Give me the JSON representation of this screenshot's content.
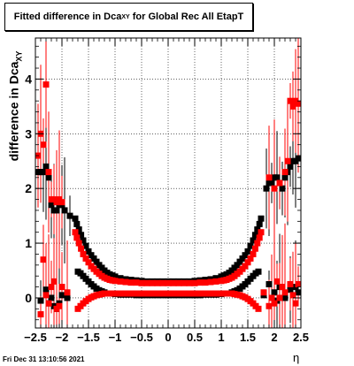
{
  "title": {
    "main": "Fitted difference in Dca",
    "sub": "XY",
    "rest": " for Global Rec All EtapT"
  },
  "ylabel": {
    "main": "difference in Dca",
    "sub": "XY"
  },
  "xlabel": "η",
  "timestamp": "Fri Dec 31 13:10:56 2021",
  "colors": {
    "black": "#000000",
    "red": "#ff0000"
  },
  "chart_data": {
    "type": "scatter",
    "xlim": [
      -2.5,
      2.5
    ],
    "ylim": [
      -0.55,
      4.75
    ],
    "grid": true,
    "x_ticks": [
      -2.5,
      -2,
      -1.5,
      -1,
      -0.5,
      0,
      0.5,
      1,
      1.5,
      2,
      2.5
    ],
    "x_tick_labels": [
      "−2.5",
      "−2",
      "−1.5",
      "−1",
      "−0.5",
      "0",
      "0.5",
      "1",
      "1.5",
      "2",
      "2.5"
    ],
    "y_ticks": [
      0,
      1,
      2,
      3,
      4
    ],
    "y_tick_labels": [
      "0",
      "1",
      "2",
      "3",
      "4"
    ],
    "series": [
      {
        "color": "#000000",
        "marker": "square",
        "points": [
          [
            -2.45,
            2.3
          ],
          [
            -2.4,
            2.3
          ],
          [
            -2.35,
            2.3
          ],
          [
            -2.3,
            2.4
          ],
          [
            -2.25,
            2.2
          ],
          [
            -2.2,
            1.7
          ],
          [
            -2.15,
            1.6
          ],
          [
            -2.1,
            1.6
          ],
          [
            -2.05,
            1.7
          ],
          [
            -2.0,
            1.7
          ],
          [
            -1.95,
            1.6
          ],
          [
            -1.85,
            1.5
          ],
          [
            -1.75,
            1.45
          ],
          [
            -1.72,
            1.35
          ],
          [
            -1.68,
            1.25
          ],
          [
            -1.64,
            1.15
          ],
          [
            -1.6,
            1.05
          ],
          [
            -1.55,
            0.95
          ],
          [
            -1.5,
            0.85
          ],
          [
            -1.45,
            0.78
          ],
          [
            -1.4,
            0.72
          ],
          [
            -1.35,
            0.66
          ],
          [
            -1.3,
            0.6
          ],
          [
            -1.25,
            0.55
          ],
          [
            -1.2,
            0.5
          ],
          [
            -1.15,
            0.46
          ],
          [
            -1.1,
            0.43
          ],
          [
            -1.05,
            0.41
          ],
          [
            -1.0,
            0.39
          ],
          [
            -0.9,
            0.36
          ],
          [
            -0.8,
            0.34
          ],
          [
            -0.7,
            0.33
          ],
          [
            -0.6,
            0.32
          ],
          [
            -0.5,
            0.31
          ],
          [
            -0.4,
            0.3
          ],
          [
            -0.3,
            0.3
          ],
          [
            -0.2,
            0.3
          ],
          [
            -0.1,
            0.3
          ],
          [
            0.0,
            0.3
          ],
          [
            0.1,
            0.3
          ],
          [
            0.2,
            0.3
          ],
          [
            0.3,
            0.3
          ],
          [
            0.4,
            0.3
          ],
          [
            0.5,
            0.31
          ],
          [
            0.6,
            0.32
          ],
          [
            0.7,
            0.33
          ],
          [
            0.8,
            0.34
          ],
          [
            0.9,
            0.36
          ],
          [
            1.0,
            0.39
          ],
          [
            1.05,
            0.41
          ],
          [
            1.1,
            0.43
          ],
          [
            1.15,
            0.46
          ],
          [
            1.2,
            0.5
          ],
          [
            1.25,
            0.55
          ],
          [
            1.3,
            0.6
          ],
          [
            1.35,
            0.66
          ],
          [
            1.4,
            0.72
          ],
          [
            1.45,
            0.78
          ],
          [
            1.5,
            0.85
          ],
          [
            1.55,
            0.95
          ],
          [
            1.6,
            1.05
          ],
          [
            1.64,
            1.15
          ],
          [
            1.68,
            1.25
          ],
          [
            1.72,
            1.35
          ],
          [
            1.75,
            1.45
          ],
          [
            1.85,
            2.0
          ],
          [
            1.9,
            2.1
          ],
          [
            1.95,
            2.1
          ],
          [
            2.0,
            2.2
          ],
          [
            2.05,
            2.2
          ],
          [
            2.1,
            2.1
          ],
          [
            2.15,
            2.0
          ],
          [
            2.2,
            2.2
          ],
          [
            2.25,
            2.3
          ],
          [
            2.3,
            2.4
          ],
          [
            2.35,
            2.5
          ],
          [
            2.4,
            2.5
          ],
          [
            2.45,
            2.55
          ],
          [
            -1.7,
            0.48
          ],
          [
            -1.65,
            0.45
          ],
          [
            -1.6,
            0.4
          ],
          [
            -1.55,
            0.35
          ],
          [
            -1.5,
            0.3
          ],
          [
            -1.45,
            0.25
          ],
          [
            -1.4,
            0.21
          ],
          [
            -1.35,
            0.17
          ],
          [
            -1.3,
            0.14
          ],
          [
            -1.25,
            0.12
          ],
          [
            -1.2,
            0.1
          ],
          [
            -1.1,
            0.08
          ],
          [
            -1.0,
            0.07
          ],
          [
            -0.9,
            0.06
          ],
          [
            -0.8,
            0.06
          ],
          [
            -0.7,
            0.06
          ],
          [
            -0.6,
            0.05
          ],
          [
            -0.5,
            0.05
          ],
          [
            -0.4,
            0.05
          ],
          [
            -0.3,
            0.05
          ],
          [
            -0.2,
            0.05
          ],
          [
            -0.1,
            0.05
          ],
          [
            0.0,
            0.05
          ],
          [
            0.1,
            0.05
          ],
          [
            0.2,
            0.05
          ],
          [
            0.3,
            0.05
          ],
          [
            0.4,
            0.05
          ],
          [
            0.5,
            0.05
          ],
          [
            0.6,
            0.05
          ],
          [
            0.7,
            0.06
          ],
          [
            0.8,
            0.06
          ],
          [
            0.9,
            0.06
          ],
          [
            1.0,
            0.07
          ],
          [
            1.1,
            0.08
          ],
          [
            1.2,
            0.1
          ],
          [
            1.25,
            0.12
          ],
          [
            1.3,
            0.14
          ],
          [
            1.35,
            0.17
          ],
          [
            1.4,
            0.21
          ],
          [
            1.45,
            0.25
          ],
          [
            1.5,
            0.3
          ],
          [
            1.55,
            0.35
          ],
          [
            1.6,
            0.4
          ],
          [
            1.65,
            0.45
          ],
          [
            1.7,
            0.48
          ],
          [
            -2.4,
            -0.05
          ],
          [
            -2.3,
            0.15
          ],
          [
            -2.25,
            -0.1
          ],
          [
            -2.2,
            0.0
          ],
          [
            -2.15,
            -0.15
          ],
          [
            -2.1,
            -0.2
          ],
          [
            -2.05,
            -0.1
          ],
          [
            -2.0,
            0.05
          ],
          [
            -1.9,
            0.0
          ],
          [
            1.8,
            0.05
          ],
          [
            1.9,
            0.25
          ],
          [
            2.0,
            0.1
          ],
          [
            2.05,
            -0.05
          ],
          [
            2.1,
            0.2
          ],
          [
            2.2,
            0.0
          ],
          [
            2.3,
            0.15
          ],
          [
            2.4,
            0.2
          ],
          [
            2.45,
            0.1
          ]
        ]
      },
      {
        "color": "#ff0000",
        "marker": "square",
        "points": [
          [
            -2.45,
            2.6
          ],
          [
            -2.4,
            3.0
          ],
          [
            -2.35,
            2.8
          ],
          [
            -2.3,
            3.9
          ],
          [
            -2.25,
            2.3
          ],
          [
            -2.2,
            1.8
          ],
          [
            -2.15,
            1.8
          ],
          [
            -2.1,
            1.75
          ],
          [
            -2.05,
            1.8
          ],
          [
            -2.0,
            1.75
          ],
          [
            -1.75,
            1.2
          ],
          [
            -1.72,
            1.1
          ],
          [
            -1.68,
            1.0
          ],
          [
            -1.64,
            0.9
          ],
          [
            -1.6,
            0.8
          ],
          [
            -1.55,
            0.72
          ],
          [
            -1.5,
            0.65
          ],
          [
            -1.45,
            0.58
          ],
          [
            -1.4,
            0.53
          ],
          [
            -1.35,
            0.48
          ],
          [
            -1.3,
            0.44
          ],
          [
            -1.25,
            0.4
          ],
          [
            -1.2,
            0.37
          ],
          [
            -1.15,
            0.35
          ],
          [
            -1.1,
            0.33
          ],
          [
            -1.05,
            0.32
          ],
          [
            -1.0,
            0.31
          ],
          [
            -0.9,
            0.3
          ],
          [
            -0.8,
            0.29
          ],
          [
            -0.7,
            0.28
          ],
          [
            -0.6,
            0.28
          ],
          [
            -0.5,
            0.27
          ],
          [
            -0.4,
            0.27
          ],
          [
            -0.3,
            0.27
          ],
          [
            -0.2,
            0.27
          ],
          [
            -0.1,
            0.27
          ],
          [
            0.0,
            0.27
          ],
          [
            0.1,
            0.27
          ],
          [
            0.2,
            0.27
          ],
          [
            0.3,
            0.27
          ],
          [
            0.4,
            0.27
          ],
          [
            0.5,
            0.27
          ],
          [
            0.6,
            0.28
          ],
          [
            0.7,
            0.28
          ],
          [
            0.8,
            0.29
          ],
          [
            0.9,
            0.3
          ],
          [
            1.0,
            0.31
          ],
          [
            1.05,
            0.32
          ],
          [
            1.1,
            0.33
          ],
          [
            1.15,
            0.35
          ],
          [
            1.2,
            0.37
          ],
          [
            1.25,
            0.4
          ],
          [
            1.3,
            0.44
          ],
          [
            1.35,
            0.48
          ],
          [
            1.4,
            0.53
          ],
          [
            1.45,
            0.58
          ],
          [
            1.5,
            0.65
          ],
          [
            1.55,
            0.72
          ],
          [
            1.6,
            0.8
          ],
          [
            1.64,
            0.9
          ],
          [
            1.68,
            1.0
          ],
          [
            1.72,
            1.1
          ],
          [
            1.75,
            1.2
          ],
          [
            1.9,
            2.2
          ],
          [
            2.0,
            2.0
          ],
          [
            2.1,
            2.1
          ],
          [
            2.2,
            2.3
          ],
          [
            2.25,
            2.5
          ],
          [
            2.3,
            3.6
          ],
          [
            2.35,
            3.5
          ],
          [
            2.4,
            3.6
          ],
          [
            2.45,
            3.55
          ],
          [
            -1.7,
            -0.2
          ],
          [
            -1.65,
            -0.15
          ],
          [
            -1.6,
            -0.1
          ],
          [
            -1.55,
            -0.06
          ],
          [
            -1.5,
            -0.02
          ],
          [
            -1.45,
            0.01
          ],
          [
            -1.4,
            0.03
          ],
          [
            -1.35,
            0.05
          ],
          [
            -1.3,
            0.06
          ],
          [
            -1.25,
            0.07
          ],
          [
            -1.2,
            0.08
          ],
          [
            -1.1,
            0.08
          ],
          [
            -1.0,
            0.08
          ],
          [
            -0.9,
            0.08
          ],
          [
            -0.8,
            0.08
          ],
          [
            -0.7,
            0.08
          ],
          [
            -0.6,
            0.08
          ],
          [
            -0.5,
            0.08
          ],
          [
            -0.4,
            0.08
          ],
          [
            -0.3,
            0.08
          ],
          [
            -0.2,
            0.08
          ],
          [
            -0.1,
            0.08
          ],
          [
            0.0,
            0.08
          ],
          [
            0.1,
            0.08
          ],
          [
            0.2,
            0.08
          ],
          [
            0.3,
            0.08
          ],
          [
            0.4,
            0.08
          ],
          [
            0.5,
            0.08
          ],
          [
            0.6,
            0.08
          ],
          [
            0.7,
            0.08
          ],
          [
            0.8,
            0.08
          ],
          [
            0.9,
            0.08
          ],
          [
            1.0,
            0.08
          ],
          [
            1.1,
            0.08
          ],
          [
            1.2,
            0.08
          ],
          [
            1.25,
            0.07
          ],
          [
            1.3,
            0.06
          ],
          [
            1.35,
            0.05
          ],
          [
            1.4,
            0.03
          ],
          [
            1.45,
            0.01
          ],
          [
            1.5,
            -0.02
          ],
          [
            1.55,
            -0.06
          ],
          [
            1.6,
            -0.1
          ],
          [
            1.65,
            -0.15
          ],
          [
            1.7,
            -0.2
          ],
          [
            -2.4,
            -0.3
          ],
          [
            -2.35,
            0.7
          ],
          [
            -2.3,
            0.05
          ],
          [
            -2.25,
            -0.1
          ],
          [
            -2.2,
            0.2
          ],
          [
            -2.15,
            0.3
          ],
          [
            -2.1,
            -0.2
          ],
          [
            -2.05,
            -0.15
          ],
          [
            -2.0,
            0.2
          ],
          [
            -1.9,
            0.1
          ],
          [
            1.8,
            0.1
          ],
          [
            1.9,
            -0.15
          ],
          [
            1.95,
            0.0
          ],
          [
            2.0,
            -0.1
          ],
          [
            2.05,
            0.3
          ],
          [
            2.1,
            0.0
          ],
          [
            2.15,
            0.2
          ],
          [
            2.2,
            0.1
          ],
          [
            2.3,
            0.25
          ],
          [
            2.35,
            0.05
          ],
          [
            2.4,
            -0.1
          ],
          [
            2.45,
            0.25
          ]
        ]
      }
    ]
  }
}
